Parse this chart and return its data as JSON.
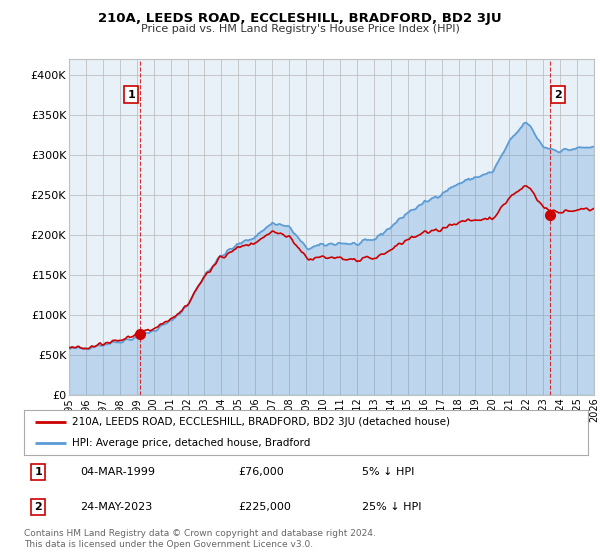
{
  "title": "210A, LEEDS ROAD, ECCLESHILL, BRADFORD, BD2 3JU",
  "subtitle": "Price paid vs. HM Land Registry's House Price Index (HPI)",
  "ylim": [
    0,
    420000
  ],
  "yticks": [
    0,
    50000,
    100000,
    150000,
    200000,
    250000,
    300000,
    350000,
    400000
  ],
  "ytick_labels": [
    "£0",
    "£50K",
    "£100K",
    "£150K",
    "£200K",
    "£250K",
    "£300K",
    "£350K",
    "£400K"
  ],
  "hpi_color": "#5b9bd5",
  "price_color": "#cc0000",
  "fill_color": "#dce9f5",
  "grid_color": "#c0c0c0",
  "bg_color": "#ffffff",
  "chart_bg": "#e8f0f8",
  "legend_label_price": "210A, LEEDS ROAD, ECCLESHILL, BRADFORD, BD2 3JU (detached house)",
  "legend_label_hpi": "HPI: Average price, detached house, Bradford",
  "annotation1_text": "04-MAR-1999",
  "annotation1_value": "£76,000",
  "annotation1_hpi": "5% ↓ HPI",
  "annotation2_text": "24-MAY-2023",
  "annotation2_value": "£225,000",
  "annotation2_hpi": "25% ↓ HPI",
  "footer": "Contains HM Land Registry data © Crown copyright and database right 2024.\nThis data is licensed under the Open Government Licence v3.0.",
  "annotation1_year": 1999.17,
  "annotation1_val": 76000,
  "annotation2_year": 2023.39,
  "annotation2_val": 225000,
  "xmin": 1995,
  "xmax": 2026
}
